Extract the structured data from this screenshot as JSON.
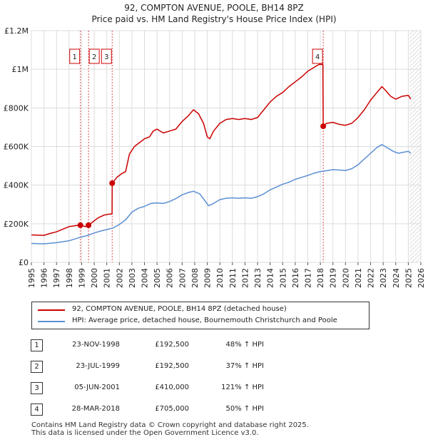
{
  "header": {
    "title": "92, COMPTON AVENUE, POOLE, BH14 8PZ",
    "subtitle": "Price paid vs. HM Land Registry's House Price Index (HPI)"
  },
  "colors": {
    "property": "#cc0000",
    "hpi": "#5b8fd4",
    "grid": "#dcdcdc",
    "marker_line": "#cc0000"
  },
  "chart_data": {
    "type": "line",
    "x_range": [
      1995,
      2026
    ],
    "ylim": [
      0,
      1200000
    ],
    "y_ticks": [
      0,
      200000,
      400000,
      600000,
      800000,
      1000000,
      1200000
    ],
    "y_tick_labels": [
      "£0",
      "£200K",
      "£400K",
      "£600K",
      "£800K",
      "£1M",
      "£1.2M"
    ],
    "x_ticks": [
      1995,
      1996,
      1997,
      1998,
      1999,
      2000,
      2001,
      2002,
      2003,
      2004,
      2005,
      2006,
      2007,
      2008,
      2009,
      2010,
      2011,
      2012,
      2013,
      2014,
      2015,
      2016,
      2017,
      2018,
      2019,
      2020,
      2021,
      2022,
      2023,
      2024,
      2025,
      2026
    ],
    "series": [
      {
        "name": "92, COMPTON AVENUE, POOLE, BH14 8PZ (detached house)",
        "points": [
          [
            1995.0,
            142000
          ],
          [
            1996.0,
            140000
          ],
          [
            1996.5,
            150000
          ],
          [
            1997.0,
            158000
          ],
          [
            1997.5,
            172000
          ],
          [
            1998.0,
            185000
          ],
          [
            1998.5,
            190000
          ],
          [
            1998.9,
            192500
          ],
          [
            1999.3,
            185000
          ],
          [
            1999.55,
            192500
          ],
          [
            1999.9,
            210000
          ],
          [
            2000.3,
            230000
          ],
          [
            2000.8,
            245000
          ],
          [
            2001.2,
            250000
          ],
          [
            2001.42,
            250000
          ],
          [
            2001.43,
            410000
          ],
          [
            2001.8,
            440000
          ],
          [
            2002.2,
            460000
          ],
          [
            2002.5,
            470000
          ],
          [
            2002.8,
            560000
          ],
          [
            2003.2,
            600000
          ],
          [
            2003.6,
            620000
          ],
          [
            2004.0,
            640000
          ],
          [
            2004.4,
            650000
          ],
          [
            2004.7,
            680000
          ],
          [
            2005.0,
            690000
          ],
          [
            2005.5,
            670000
          ],
          [
            2006.0,
            680000
          ],
          [
            2006.5,
            690000
          ],
          [
            2007.0,
            730000
          ],
          [
            2007.5,
            760000
          ],
          [
            2007.9,
            790000
          ],
          [
            2008.3,
            770000
          ],
          [
            2008.7,
            720000
          ],
          [
            2009.0,
            650000
          ],
          [
            2009.2,
            640000
          ],
          [
            2009.5,
            680000
          ],
          [
            2010.0,
            720000
          ],
          [
            2010.5,
            740000
          ],
          [
            2011.0,
            745000
          ],
          [
            2011.5,
            740000
          ],
          [
            2012.0,
            745000
          ],
          [
            2012.5,
            740000
          ],
          [
            2013.0,
            750000
          ],
          [
            2013.5,
            790000
          ],
          [
            2014.0,
            830000
          ],
          [
            2014.5,
            860000
          ],
          [
            2015.0,
            880000
          ],
          [
            2015.5,
            910000
          ],
          [
            2016.0,
            935000
          ],
          [
            2016.5,
            960000
          ],
          [
            2017.0,
            990000
          ],
          [
            2017.5,
            1010000
          ],
          [
            2017.9,
            1025000
          ],
          [
            2018.2,
            1025000
          ],
          [
            2018.23,
            705000
          ],
          [
            2018.5,
            720000
          ],
          [
            2019.0,
            725000
          ],
          [
            2019.5,
            715000
          ],
          [
            2020.0,
            710000
          ],
          [
            2020.5,
            720000
          ],
          [
            2021.0,
            750000
          ],
          [
            2021.5,
            790000
          ],
          [
            2022.0,
            840000
          ],
          [
            2022.5,
            880000
          ],
          [
            2022.9,
            910000
          ],
          [
            2023.2,
            890000
          ],
          [
            2023.6,
            860000
          ],
          [
            2024.0,
            845000
          ],
          [
            2024.5,
            860000
          ],
          [
            2025.0,
            865000
          ],
          [
            2025.2,
            845000
          ]
        ]
      },
      {
        "name": "HPI: Average price, detached house, Bournemouth Christchurch and Poole",
        "points": [
          [
            1995.0,
            98000
          ],
          [
            1996.0,
            96000
          ],
          [
            1997.0,
            102000
          ],
          [
            1998.0,
            112000
          ],
          [
            1998.9,
            130000
          ],
          [
            1999.5,
            140000
          ],
          [
            2000.0,
            152000
          ],
          [
            2000.5,
            162000
          ],
          [
            2001.0,
            170000
          ],
          [
            2001.5,
            178000
          ],
          [
            2002.0,
            196000
          ],
          [
            2002.5,
            220000
          ],
          [
            2003.0,
            260000
          ],
          [
            2003.5,
            280000
          ],
          [
            2004.0,
            290000
          ],
          [
            2004.5,
            305000
          ],
          [
            2005.0,
            308000
          ],
          [
            2005.5,
            305000
          ],
          [
            2006.0,
            315000
          ],
          [
            2006.5,
            330000
          ],
          [
            2007.0,
            350000
          ],
          [
            2007.5,
            362000
          ],
          [
            2007.9,
            368000
          ],
          [
            2008.4,
            355000
          ],
          [
            2008.8,
            320000
          ],
          [
            2009.1,
            293000
          ],
          [
            2009.5,
            305000
          ],
          [
            2010.0,
            325000
          ],
          [
            2010.5,
            332000
          ],
          [
            2011.0,
            334000
          ],
          [
            2011.5,
            332000
          ],
          [
            2012.0,
            334000
          ],
          [
            2012.5,
            332000
          ],
          [
            2013.0,
            340000
          ],
          [
            2013.5,
            355000
          ],
          [
            2014.0,
            375000
          ],
          [
            2014.5,
            390000
          ],
          [
            2015.0,
            405000
          ],
          [
            2015.5,
            415000
          ],
          [
            2016.0,
            430000
          ],
          [
            2016.5,
            440000
          ],
          [
            2017.0,
            450000
          ],
          [
            2017.5,
            462000
          ],
          [
            2018.0,
            470000
          ],
          [
            2018.5,
            475000
          ],
          [
            2019.0,
            480000
          ],
          [
            2019.5,
            478000
          ],
          [
            2020.0,
            476000
          ],
          [
            2020.5,
            485000
          ],
          [
            2021.0,
            505000
          ],
          [
            2021.5,
            535000
          ],
          [
            2022.0,
            565000
          ],
          [
            2022.5,
            595000
          ],
          [
            2022.9,
            610000
          ],
          [
            2023.3,
            595000
          ],
          [
            2023.8,
            575000
          ],
          [
            2024.2,
            565000
          ],
          [
            2024.6,
            570000
          ],
          [
            2025.0,
            575000
          ],
          [
            2025.2,
            565000
          ]
        ]
      }
    ],
    "sale_markers": [
      {
        "id": "1",
        "x": 1998.9,
        "y": 192500,
        "label_slot": 0
      },
      {
        "id": "2",
        "x": 1999.55,
        "y": 192500,
        "label_slot": 1
      },
      {
        "id": "3",
        "x": 2001.43,
        "y": 410000,
        "label_slot": 0
      },
      {
        "id": "4",
        "x": 2018.23,
        "y": 705000,
        "label_slot": 0
      }
    ],
    "forecast_from": 2025.1
  },
  "legend": {
    "property_label": "92, COMPTON AVENUE, POOLE, BH14 8PZ (detached house)",
    "hpi_label": "HPI: Average price, detached house, Bournemouth Christchurch and Poole"
  },
  "transactions": [
    {
      "num": "1",
      "date": "23-NOV-1998",
      "price": "£192,500",
      "hpi": "48% ↑ HPI"
    },
    {
      "num": "2",
      "date": "23-JUL-1999",
      "price": "£192,500",
      "hpi": "37% ↑ HPI"
    },
    {
      "num": "3",
      "date": "05-JUN-2001",
      "price": "£410,000",
      "hpi": "121% ↑ HPI"
    },
    {
      "num": "4",
      "date": "28-MAR-2018",
      "price": "£705,000",
      "hpi": "50% ↑ HPI"
    }
  ],
  "footer": {
    "line1": "Contains HM Land Registry data © Crown copyright and database right 2025.",
    "line2": "This data is licensed under the Open Government Licence v3.0."
  }
}
